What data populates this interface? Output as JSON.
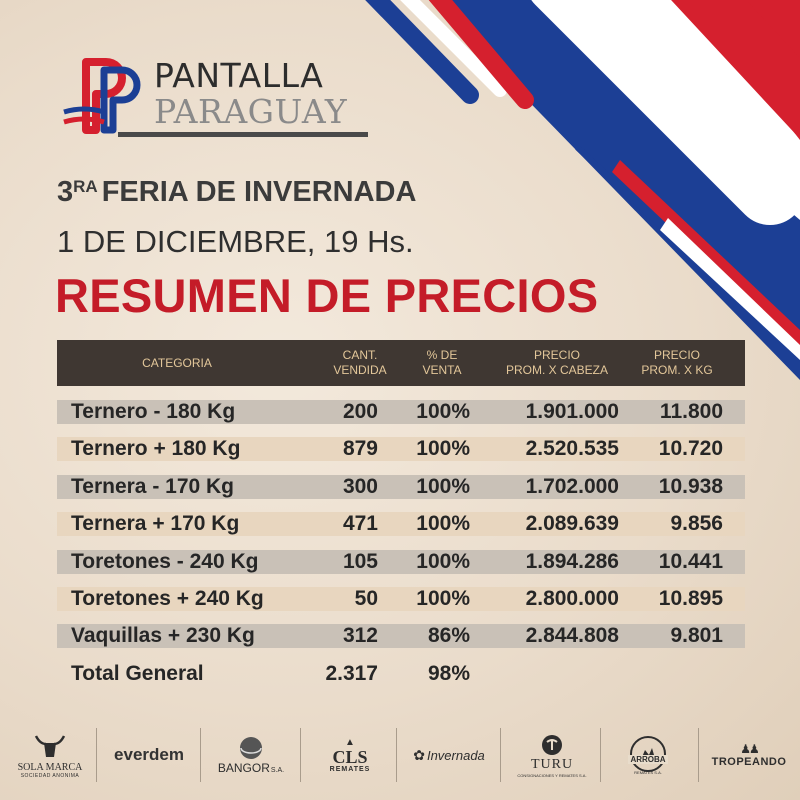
{
  "brand": {
    "line1": "PANTALLA",
    "line2": "PARAGUAY",
    "colors": {
      "red": "#d52b1e",
      "blue": "#0038a8",
      "white": "#ffffff"
    }
  },
  "heading": {
    "ordinal_number": "3",
    "ordinal_suffix": "RA",
    "event": "FERIA DE INVERNADA",
    "date": "1 DE DICIEMBRE, 19 Hs.",
    "title": "RESUMEN DE PRECIOS"
  },
  "table": {
    "headers": {
      "categoria": "CATEGORIA",
      "cantidad": "CANT.\nVENDIDA",
      "porcentaje": "% DE\nVENTA",
      "precio_cabeza": "PRECIO\nPROM. X CABEZA",
      "precio_kg": "PRECIO\nPROM. X KG"
    },
    "rows": [
      {
        "categoria": "Ternero - 180 Kg",
        "cantidad": "200",
        "porcentaje": "100%",
        "precio_cabeza": "1.901.000",
        "precio_kg": "11.800"
      },
      {
        "categoria": "Ternero + 180 Kg",
        "cantidad": "879",
        "porcentaje": "100%",
        "precio_cabeza": "2.520.535",
        "precio_kg": "10.720"
      },
      {
        "categoria": "Ternera - 170 Kg",
        "cantidad": "300",
        "porcentaje": "100%",
        "precio_cabeza": "1.702.000",
        "precio_kg": "10.938"
      },
      {
        "categoria": "Ternera + 170 Kg",
        "cantidad": "471",
        "porcentaje": "100%",
        "precio_cabeza": "2.089.639",
        "precio_kg": "9.856"
      },
      {
        "categoria": "Toretones - 240 Kg",
        "cantidad": "105",
        "porcentaje": "100%",
        "precio_cabeza": "1.894.286",
        "precio_kg": "10.441"
      },
      {
        "categoria": "Toretones + 240 Kg",
        "cantidad": "50",
        "porcentaje": "100%",
        "precio_cabeza": "2.800.000",
        "precio_kg": "10.895"
      },
      {
        "categoria": "Vaquillas + 230 Kg",
        "cantidad": "312",
        "porcentaje": "86%",
        "precio_cabeza": "2.844.808",
        "precio_kg": "9.801"
      }
    ],
    "total": {
      "categoria": "Total General",
      "cantidad": "2.317",
      "porcentaje": "98%"
    }
  },
  "sponsors": [
    {
      "name": "SOLA MARCA",
      "sub": "SOCIEDAD ANONIMA",
      "icon": "bull-head-icon"
    },
    {
      "name": "everdem",
      "icon": ""
    },
    {
      "name": "BANGOR",
      "sub": "S.A.",
      "icon": "sphere-icon"
    },
    {
      "name": "CLS",
      "sub": "REMATES",
      "icon": "bull-icon"
    },
    {
      "name": "Invernada",
      "icon": "swirl-icon"
    },
    {
      "name": "TURU",
      "sub": "CONSIGNACIONES Y REMATES S.A.",
      "icon": "horn-icon"
    },
    {
      "name": "ARROBA",
      "sub": "REMATES S.A.",
      "icon": "gaucho-icon"
    },
    {
      "name": "TROPEANDO",
      "icon": "riders-icon"
    }
  ]
}
